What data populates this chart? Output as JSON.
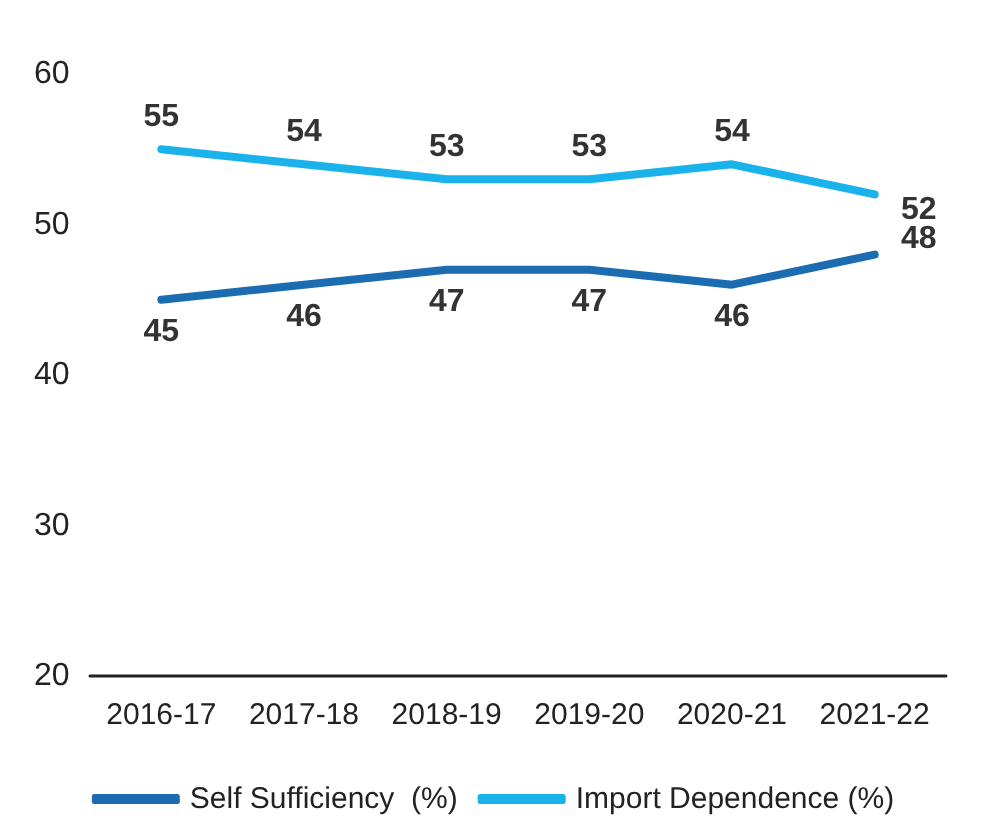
{
  "chart_data": {
    "type": "line",
    "categories": [
      "2016-17",
      "2017-18",
      "2018-19",
      "2019-20",
      "2020-21",
      "2021-22"
    ],
    "series": [
      {
        "name": "Self Sufficiency  (%)",
        "color": "#1c6cb2",
        "values": [
          45,
          46,
          47,
          47,
          46,
          48
        ]
      },
      {
        "name": "Import Dependence (%)",
        "color": "#1ab2ea",
        "values": [
          55,
          54,
          53,
          53,
          54,
          52
        ]
      }
    ],
    "ylim": [
      20,
      60
    ],
    "yticks": [
      20,
      30,
      40,
      50,
      60
    ],
    "grid": false,
    "legend": "bottom",
    "data_labels": true,
    "marker": "none",
    "line_style": "solid"
  }
}
